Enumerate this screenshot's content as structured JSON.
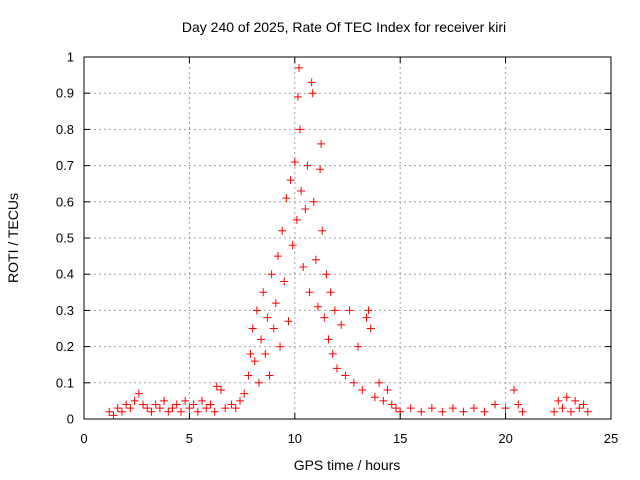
{
  "chart_data": {
    "type": "scatter",
    "title": "Day 240 of 2025, Rate Of TEC Index for receiver kiri",
    "xlabel": "GPS time / hours",
    "ylabel": "ROTI / TECUs",
    "xlim": [
      0,
      25
    ],
    "ylim": [
      0,
      1
    ],
    "x_ticks": [
      0,
      5,
      10,
      15,
      20,
      25
    ],
    "x_tick_labels": [
      "0",
      "5",
      "10",
      "15",
      "20",
      "25"
    ],
    "y_ticks": [
      0,
      0.1,
      0.2,
      0.3,
      0.4,
      0.5,
      0.6,
      0.7,
      0.8,
      0.9,
      1
    ],
    "y_tick_labels": [
      "0",
      "0.1",
      "0.2",
      "0.3",
      "0.4",
      "0.5",
      "0.6",
      "0.7",
      "0.8",
      "0.9",
      "1"
    ],
    "grid": true,
    "marker": "+",
    "marker_color": "#ff0000",
    "series": [
      {
        "name": "ROTI",
        "points": [
          [
            1.2,
            0.02
          ],
          [
            1.4,
            0.01
          ],
          [
            1.6,
            0.03
          ],
          [
            1.8,
            0.02
          ],
          [
            2.0,
            0.04
          ],
          [
            2.2,
            0.03
          ],
          [
            2.4,
            0.05
          ],
          [
            2.6,
            0.07
          ],
          [
            2.8,
            0.04
          ],
          [
            3.0,
            0.03
          ],
          [
            3.2,
            0.02
          ],
          [
            3.4,
            0.04
          ],
          [
            3.6,
            0.03
          ],
          [
            3.8,
            0.05
          ],
          [
            4.0,
            0.02
          ],
          [
            4.2,
            0.03
          ],
          [
            4.4,
            0.04
          ],
          [
            4.6,
            0.02
          ],
          [
            4.8,
            0.05
          ],
          [
            5.0,
            0.03
          ],
          [
            5.2,
            0.04
          ],
          [
            5.4,
            0.02
          ],
          [
            5.6,
            0.05
          ],
          [
            5.8,
            0.03
          ],
          [
            6.0,
            0.04
          ],
          [
            6.2,
            0.02
          ],
          [
            6.3,
            0.09
          ],
          [
            6.5,
            0.08
          ],
          [
            6.7,
            0.03
          ],
          [
            7.0,
            0.04
          ],
          [
            7.2,
            0.03
          ],
          [
            7.4,
            0.05
          ],
          [
            7.6,
            0.07
          ],
          [
            7.8,
            0.12
          ],
          [
            7.9,
            0.18
          ],
          [
            8.0,
            0.25
          ],
          [
            8.1,
            0.16
          ],
          [
            8.2,
            0.3
          ],
          [
            8.3,
            0.1
          ],
          [
            8.4,
            0.22
          ],
          [
            8.5,
            0.35
          ],
          [
            8.6,
            0.18
          ],
          [
            8.7,
            0.28
          ],
          [
            8.8,
            0.12
          ],
          [
            8.9,
            0.4
          ],
          [
            9.0,
            0.25
          ],
          [
            9.1,
            0.32
          ],
          [
            9.2,
            0.45
          ],
          [
            9.3,
            0.2
          ],
          [
            9.4,
            0.52
          ],
          [
            9.5,
            0.38
          ],
          [
            9.6,
            0.61
          ],
          [
            9.7,
            0.27
          ],
          [
            9.8,
            0.66
          ],
          [
            9.9,
            0.48
          ],
          [
            10.0,
            0.71
          ],
          [
            10.1,
            0.55
          ],
          [
            10.15,
            0.89
          ],
          [
            10.2,
            0.97
          ],
          [
            10.25,
            0.8
          ],
          [
            10.3,
            0.63
          ],
          [
            10.4,
            0.42
          ],
          [
            10.5,
            0.58
          ],
          [
            10.6,
            0.7
          ],
          [
            10.7,
            0.35
          ],
          [
            10.8,
            0.93
          ],
          [
            10.85,
            0.9
          ],
          [
            10.9,
            0.6
          ],
          [
            11.0,
            0.44
          ],
          [
            11.1,
            0.31
          ],
          [
            11.2,
            0.69
          ],
          [
            11.25,
            0.76
          ],
          [
            11.3,
            0.52
          ],
          [
            11.4,
            0.28
          ],
          [
            11.5,
            0.4
          ],
          [
            11.6,
            0.22
          ],
          [
            11.7,
            0.35
          ],
          [
            11.8,
            0.18
          ],
          [
            11.9,
            0.3
          ],
          [
            12.0,
            0.14
          ],
          [
            12.2,
            0.26
          ],
          [
            12.4,
            0.12
          ],
          [
            12.6,
            0.3
          ],
          [
            12.8,
            0.1
          ],
          [
            13.0,
            0.2
          ],
          [
            13.2,
            0.08
          ],
          [
            13.4,
            0.28
          ],
          [
            13.5,
            0.3
          ],
          [
            13.6,
            0.25
          ],
          [
            13.8,
            0.06
          ],
          [
            14.0,
            0.1
          ],
          [
            14.2,
            0.05
          ],
          [
            14.4,
            0.08
          ],
          [
            14.6,
            0.04
          ],
          [
            14.8,
            0.03
          ],
          [
            15.0,
            0.02
          ],
          [
            15.5,
            0.03
          ],
          [
            16.0,
            0.02
          ],
          [
            16.5,
            0.03
          ],
          [
            17.0,
            0.02
          ],
          [
            17.5,
            0.03
          ],
          [
            18.0,
            0.02
          ],
          [
            18.5,
            0.03
          ],
          [
            19.0,
            0.02
          ],
          [
            19.5,
            0.04
          ],
          [
            20.0,
            0.03
          ],
          [
            20.4,
            0.08
          ],
          [
            20.6,
            0.04
          ],
          [
            20.8,
            0.02
          ],
          [
            22.3,
            0.02
          ],
          [
            22.5,
            0.05
          ],
          [
            22.7,
            0.03
          ],
          [
            22.9,
            0.06
          ],
          [
            23.1,
            0.02
          ],
          [
            23.3,
            0.05
          ],
          [
            23.5,
            0.03
          ],
          [
            23.7,
            0.04
          ],
          [
            23.9,
            0.02
          ]
        ]
      }
    ]
  }
}
